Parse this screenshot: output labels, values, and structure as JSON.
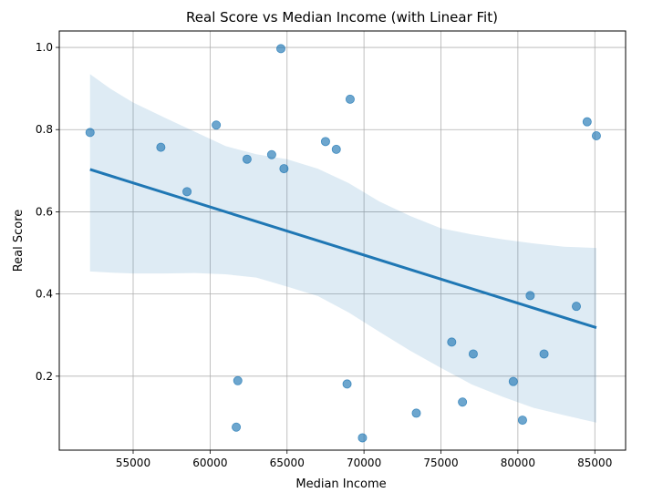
{
  "chart_data": {
    "type": "scatter",
    "title": "Real Score vs Median Income (with Linear Fit)",
    "xlabel": "Median Income",
    "ylabel": "Real Score",
    "xlim": [
      50200,
      87000
    ],
    "ylim": [
      0.02,
      1.04
    ],
    "xticks": [
      55000,
      60000,
      65000,
      70000,
      75000,
      80000,
      85000
    ],
    "yticks": [
      0.2,
      0.4,
      0.6,
      0.8,
      1.0
    ],
    "xtick_labels": [
      "55000",
      "60000",
      "65000",
      "70000",
      "75000",
      "80000",
      "85000"
    ],
    "ytick_labels": [
      "0.2",
      "0.4",
      "0.6",
      "0.8",
      "1.0"
    ],
    "grid": true,
    "colors": {
      "points": "#1f77b4",
      "fit_line": "#1f77b4",
      "ci_band": "#1f77b4",
      "grid": "#b0b0b0"
    },
    "points": [
      {
        "x": 52200,
        "y": 0.793
      },
      {
        "x": 56800,
        "y": 0.757
      },
      {
        "x": 58500,
        "y": 0.649
      },
      {
        "x": 60400,
        "y": 0.811
      },
      {
        "x": 61700,
        "y": 0.076
      },
      {
        "x": 61800,
        "y": 0.189
      },
      {
        "x": 62400,
        "y": 0.728
      },
      {
        "x": 64000,
        "y": 0.739
      },
      {
        "x": 64600,
        "y": 0.997
      },
      {
        "x": 64800,
        "y": 0.705
      },
      {
        "x": 67500,
        "y": 0.771
      },
      {
        "x": 68200,
        "y": 0.752
      },
      {
        "x": 68900,
        "y": 0.181
      },
      {
        "x": 69100,
        "y": 0.874
      },
      {
        "x": 69900,
        "y": 0.05
      },
      {
        "x": 73400,
        "y": 0.11
      },
      {
        "x": 75700,
        "y": 0.283
      },
      {
        "x": 76400,
        "y": 0.137
      },
      {
        "x": 77100,
        "y": 0.254
      },
      {
        "x": 79700,
        "y": 0.187
      },
      {
        "x": 80300,
        "y": 0.093
      },
      {
        "x": 80800,
        "y": 0.396
      },
      {
        "x": 81700,
        "y": 0.254
      },
      {
        "x": 83800,
        "y": 0.37
      },
      {
        "x": 84500,
        "y": 0.819
      },
      {
        "x": 85100,
        "y": 0.785
      }
    ],
    "fit_line": {
      "x": [
        52200,
        85100
      ],
      "y": [
        0.703,
        0.318
      ]
    },
    "confidence_band": {
      "x": [
        52200,
        53500,
        55000,
        57000,
        59000,
        61000,
        63000,
        65000,
        67000,
        69000,
        71000,
        73000,
        75000,
        77000,
        79000,
        81000,
        83000,
        85100
      ],
      "lower": [
        0.455,
        0.452,
        0.45,
        0.45,
        0.451,
        0.448,
        0.44,
        0.418,
        0.395,
        0.355,
        0.308,
        0.262,
        0.22,
        0.18,
        0.15,
        0.123,
        0.105,
        0.087
      ],
      "upper": [
        0.935,
        0.9,
        0.866,
        0.83,
        0.795,
        0.76,
        0.74,
        0.728,
        0.705,
        0.67,
        0.625,
        0.59,
        0.56,
        0.545,
        0.533,
        0.523,
        0.515,
        0.512
      ]
    }
  }
}
